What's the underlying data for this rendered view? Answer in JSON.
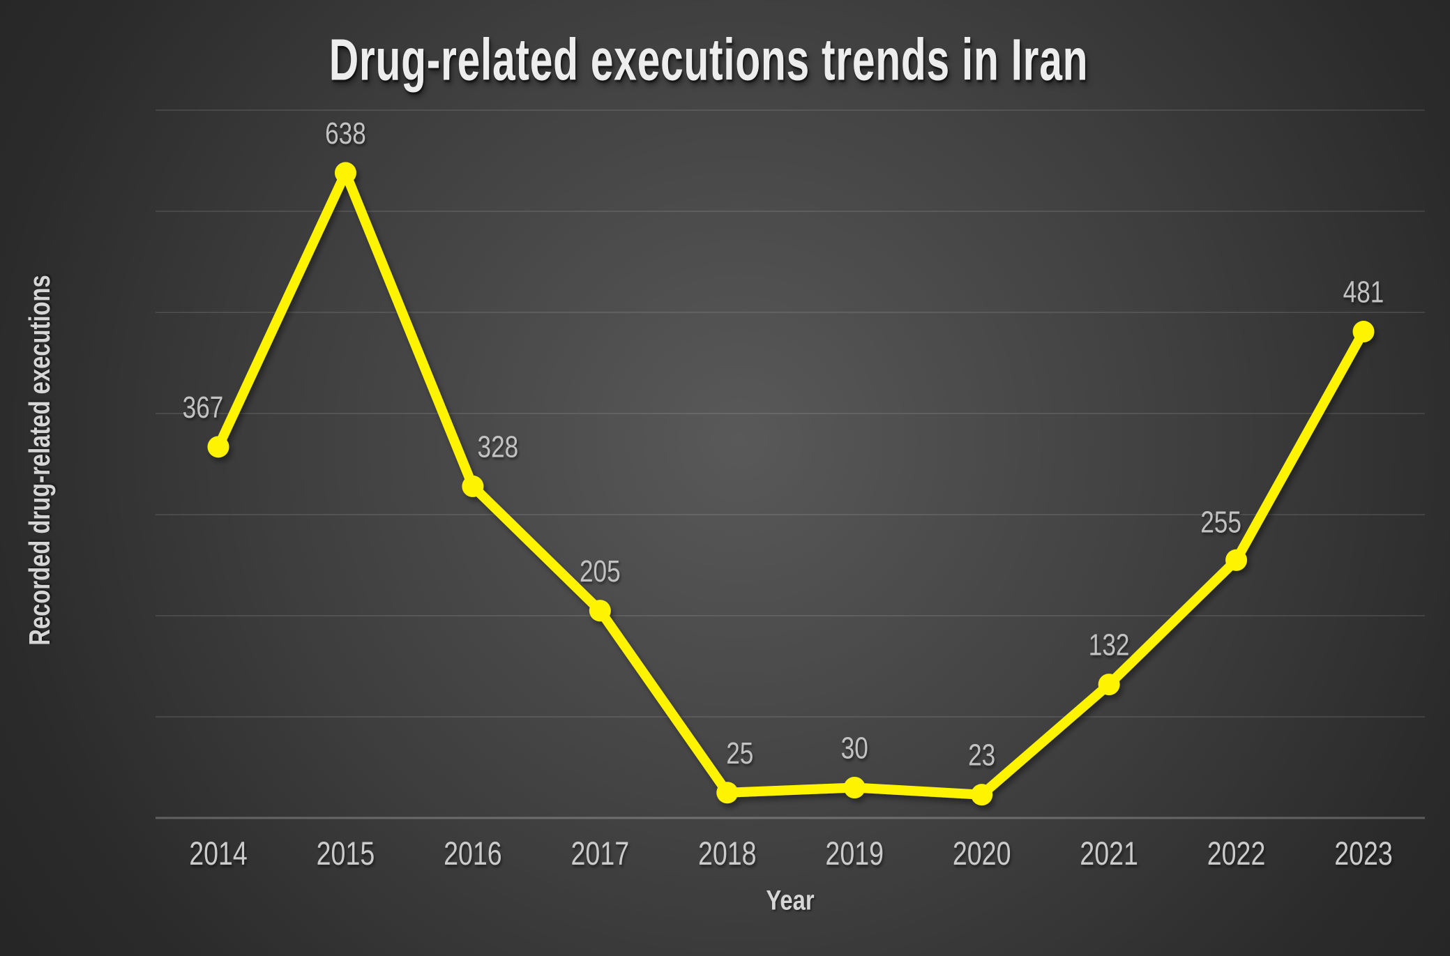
{
  "figure": {
    "background_center_color": "#595959",
    "background_edge_color": "#232323"
  },
  "chart_data": {
    "type": "line",
    "title": "Drug-related executions trends in Iran",
    "xlabel": "Year",
    "ylabel": "Recorded drug-related executions",
    "categories": [
      "2014",
      "2015",
      "2016",
      "2017",
      "2018",
      "2019",
      "2020",
      "2021",
      "2022",
      "2023"
    ],
    "values": [
      367,
      638,
      328,
      205,
      25,
      30,
      23,
      132,
      255,
      481
    ],
    "data_labels_shown": true,
    "ylim": [
      0,
      700
    ],
    "grid": "horizontal",
    "gridline_step": 100,
    "y_tick_labels_shown": false,
    "legend": "none",
    "line_color": "#fef301",
    "marker": "circle",
    "value_label_color": "#c2c2c2",
    "tick_label_color": "#cbcbcb",
    "title_color": "#ededed",
    "axis_title_color": "#d6d6d6",
    "gridline_color": "rgba(255,255,255,0.10)",
    "axis_line_color": "rgba(255,255,255,0.24)"
  }
}
